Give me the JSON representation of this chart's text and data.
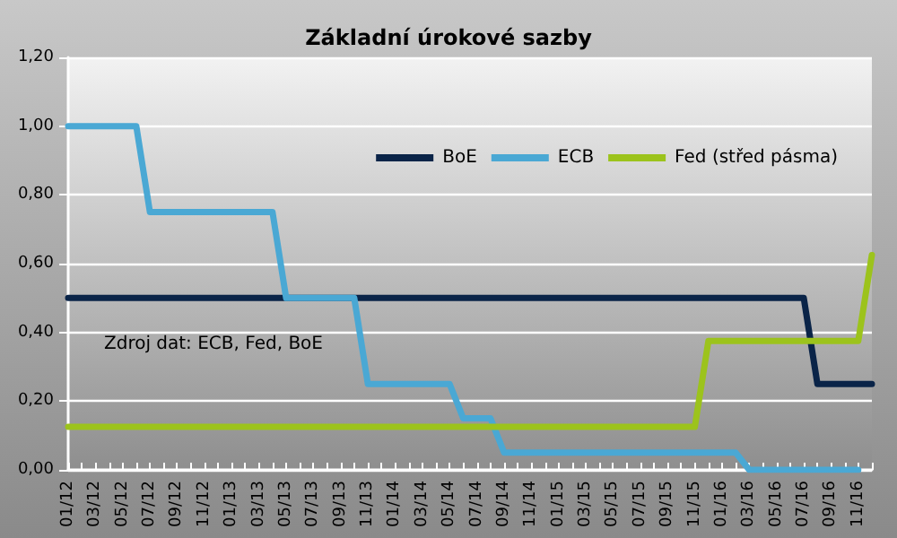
{
  "chart_data": {
    "type": "line",
    "title": "Základní úrokové sazby",
    "categories": [
      "01/12",
      null,
      "03/12",
      null,
      "05/12",
      null,
      "07/12",
      null,
      "09/12",
      null,
      "11/12",
      null,
      "01/13",
      null,
      "03/13",
      null,
      "05/13",
      null,
      "07/13",
      null,
      "09/13",
      null,
      "11/13",
      null,
      "01/14",
      null,
      "03/14",
      null,
      "05/14",
      null,
      "07/14",
      null,
      "09/14",
      null,
      "11/14",
      null,
      "01/15",
      null,
      "03/15",
      null,
      "05/15",
      null,
      "07/15",
      null,
      "09/15",
      null,
      "11/15",
      null,
      "01/16",
      null,
      "03/16",
      null,
      "05/16",
      null,
      "07/16",
      null,
      "09/16",
      null,
      "11/16",
      null
    ],
    "series": [
      {
        "name": "BoE",
        "color": "#0a2448",
        "values": [
          0.5,
          0.5,
          0.5,
          0.5,
          0.5,
          0.5,
          0.5,
          0.5,
          0.5,
          0.5,
          0.5,
          0.5,
          0.5,
          0.5,
          0.5,
          0.5,
          0.5,
          0.5,
          0.5,
          0.5,
          0.5,
          0.5,
          0.5,
          0.5,
          0.5,
          0.5,
          0.5,
          0.5,
          0.5,
          0.5,
          0.5,
          0.5,
          0.5,
          0.5,
          0.5,
          0.5,
          0.5,
          0.5,
          0.5,
          0.5,
          0.5,
          0.5,
          0.5,
          0.5,
          0.5,
          0.5,
          0.5,
          0.5,
          0.5,
          0.5,
          0.5,
          0.5,
          0.5,
          0.5,
          0.5,
          0.25,
          0.25,
          0.25,
          0.25,
          0.25
        ]
      },
      {
        "name": "ECB",
        "color": "#4aa8d4",
        "values": [
          1,
          1,
          1,
          1,
          1,
          1,
          0.75,
          0.75,
          0.75,
          0.75,
          0.75,
          0.75,
          0.75,
          0.75,
          0.75,
          0.75,
          0.5,
          0.5,
          0.5,
          0.5,
          0.5,
          0.5,
          0.25,
          0.25,
          0.25,
          0.25,
          0.25,
          0.25,
          0.25,
          0.15,
          0.15,
          0.15,
          0.05,
          0.05,
          0.05,
          0.05,
          0.05,
          0.05,
          0.05,
          0.05,
          0.05,
          0.05,
          0.05,
          0.05,
          0.05,
          0.05,
          0.05,
          0.05,
          0.05,
          0.05,
          0,
          0,
          0,
          0,
          0,
          0,
          0,
          0,
          0,
          null
        ]
      },
      {
        "name": "Fed (střed pásma)",
        "color": "#9cc31c",
        "values": [
          0.125,
          0.125,
          0.125,
          0.125,
          0.125,
          0.125,
          0.125,
          0.125,
          0.125,
          0.125,
          0.125,
          0.125,
          0.125,
          0.125,
          0.125,
          0.125,
          0.125,
          0.125,
          0.125,
          0.125,
          0.125,
          0.125,
          0.125,
          0.125,
          0.125,
          0.125,
          0.125,
          0.125,
          0.125,
          0.125,
          0.125,
          0.125,
          0.125,
          0.125,
          0.125,
          0.125,
          0.125,
          0.125,
          0.125,
          0.125,
          0.125,
          0.125,
          0.125,
          0.125,
          0.125,
          0.125,
          0.125,
          0.375,
          0.375,
          0.375,
          0.375,
          0.375,
          0.375,
          0.375,
          0.375,
          0.375,
          0.375,
          0.375,
          0.375,
          0.625
        ]
      }
    ],
    "ylim": [
      0,
      1.2
    ],
    "yticks": [
      {
        "value": 0,
        "label": "0,00"
      },
      {
        "value": 0.2,
        "label": "0,20"
      },
      {
        "value": 0.4,
        "label": "0,40"
      },
      {
        "value": 0.6,
        "label": "0,60"
      },
      {
        "value": 0.8,
        "label": "0,80"
      },
      {
        "value": 1,
        "label": "1,00"
      },
      {
        "value": 1.2,
        "label": "1,20"
      }
    ],
    "grid": "y",
    "legend": "top right",
    "marker": "none",
    "line_style": "solid",
    "annotations": [
      "Zdroj dat: ECB, Fed, BoE"
    ]
  }
}
